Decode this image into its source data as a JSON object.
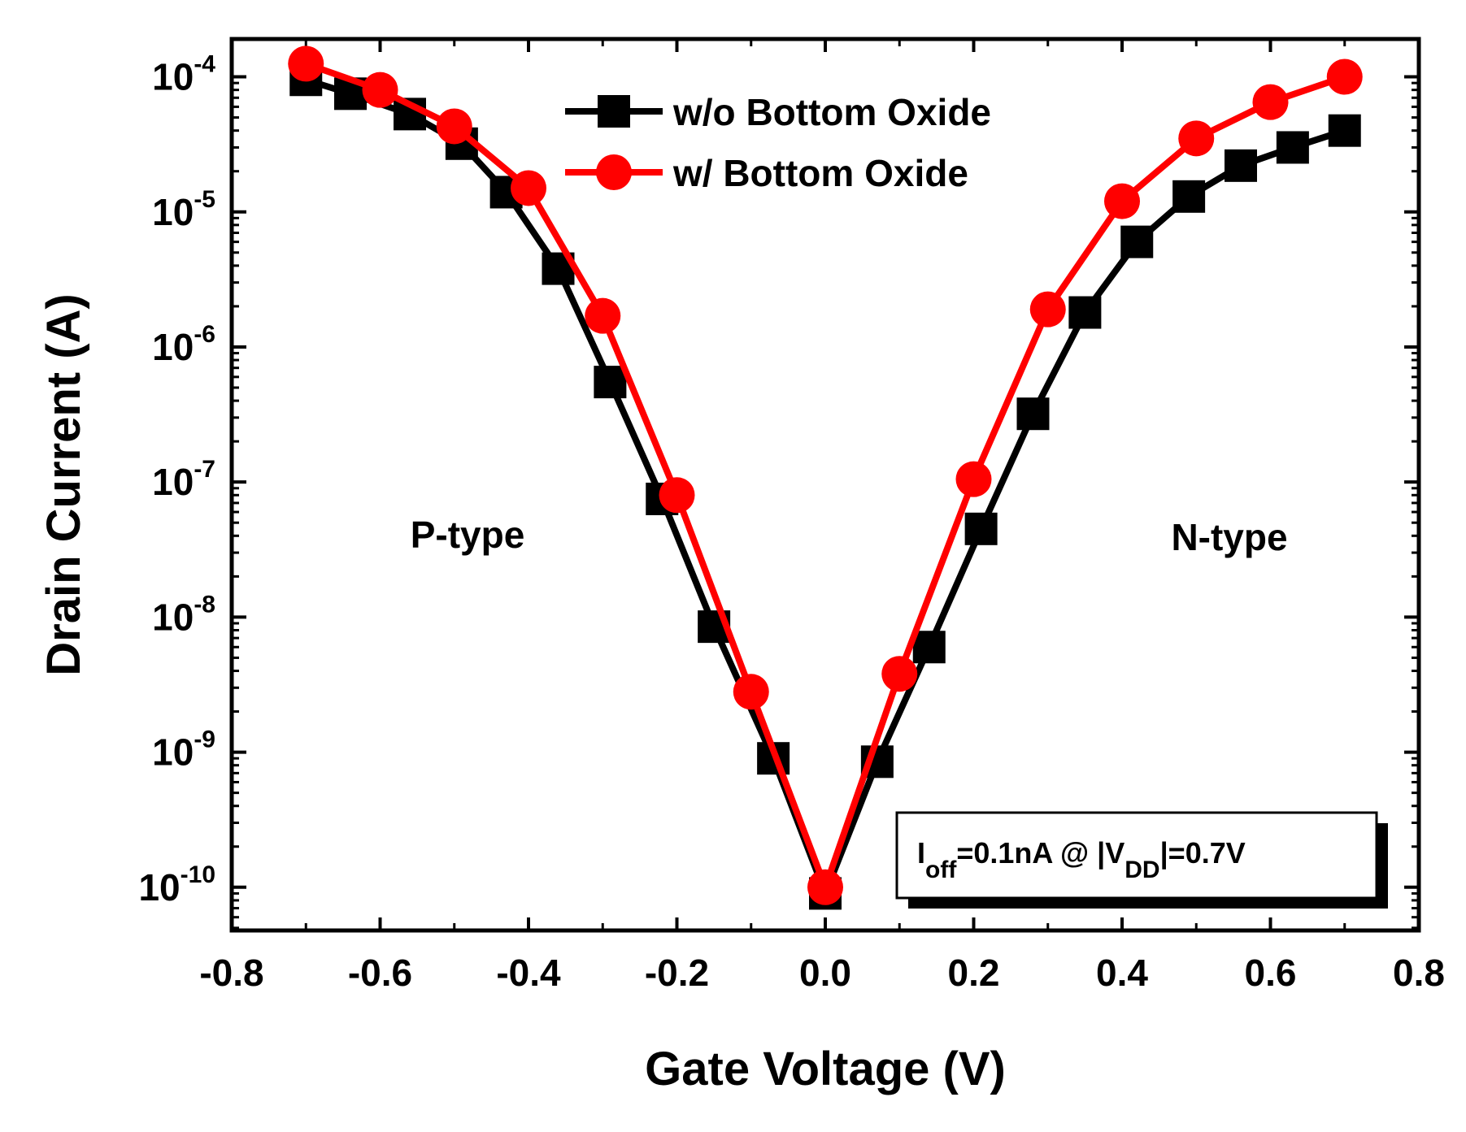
{
  "chart_data": {
    "type": "line",
    "title": "",
    "xlabel": "Gate Voltage (V)",
    "ylabel": "Drain Current (A)",
    "xlim": [
      -0.8,
      0.8
    ],
    "ylim": [
      1e-10,
      0.0001
    ],
    "yscale": "log",
    "x_ticks": [
      "-0.8",
      "-0.6",
      "-0.4",
      "-0.2",
      "0.0",
      "0.2",
      "0.4",
      "0.6",
      "0.8"
    ],
    "x_tick_values": [
      -0.8,
      -0.6,
      -0.4,
      -0.2,
      0.0,
      0.2,
      0.4,
      0.6,
      0.8
    ],
    "y_ticks": [
      {
        "base": "10",
        "exp": "-4",
        "value": 0.0001
      },
      {
        "base": "10",
        "exp": "-5",
        "value": 1e-05
      },
      {
        "base": "10",
        "exp": "-6",
        "value": 1e-06
      },
      {
        "base": "10",
        "exp": "-7",
        "value": 1e-07
      },
      {
        "base": "10",
        "exp": "-8",
        "value": 1e-08
      },
      {
        "base": "10",
        "exp": "-9",
        "value": 1e-09
      },
      {
        "base": "10",
        "exp": "-10",
        "value": 1e-10
      }
    ],
    "legend_position": "top-center",
    "series": [
      {
        "name": "w/o Bottom Oxide",
        "color": "#000000",
        "marker": "square",
        "x": [
          -0.7,
          -0.64,
          -0.56,
          -0.49,
          -0.43,
          -0.36,
          -0.29,
          -0.22,
          -0.15,
          -0.07,
          0.0,
          0.07,
          0.14,
          0.21,
          0.28,
          0.35,
          0.42,
          0.49,
          0.56,
          0.63,
          0.7
        ],
        "y": [
          9.5e-05,
          7.5e-05,
          5.3e-05,
          3.2e-05,
          1.4e-05,
          3.8e-06,
          5.5e-07,
          7.5e-08,
          8.5e-09,
          9e-10,
          9e-11,
          8.5e-10,
          6e-09,
          4.5e-08,
          3.2e-07,
          1.8e-06,
          6e-06,
          1.3e-05,
          2.2e-05,
          3e-05,
          4e-05
        ]
      },
      {
        "name": "w/ Bottom Oxide",
        "color": "#ff0000",
        "marker": "circle",
        "x": [
          -0.7,
          -0.6,
          -0.5,
          -0.4,
          -0.3,
          -0.2,
          -0.1,
          0.0,
          0.1,
          0.2,
          0.3,
          0.4,
          0.5,
          0.6,
          0.7
        ],
        "y": [
          0.000125,
          8e-05,
          4.3e-05,
          1.5e-05,
          1.7e-06,
          8e-08,
          2.8e-09,
          1e-10,
          3.8e-09,
          1.05e-07,
          1.9e-06,
          1.2e-05,
          3.5e-05,
          6.5e-05,
          0.0001
        ]
      }
    ],
    "annotations": [
      "P-type",
      "N-type"
    ],
    "note_box": {
      "i": "I",
      "i_sub": "off",
      "mid": "=0.1nA @ |V",
      "v_sub": "DD",
      "tail": "|=0.7V"
    }
  }
}
